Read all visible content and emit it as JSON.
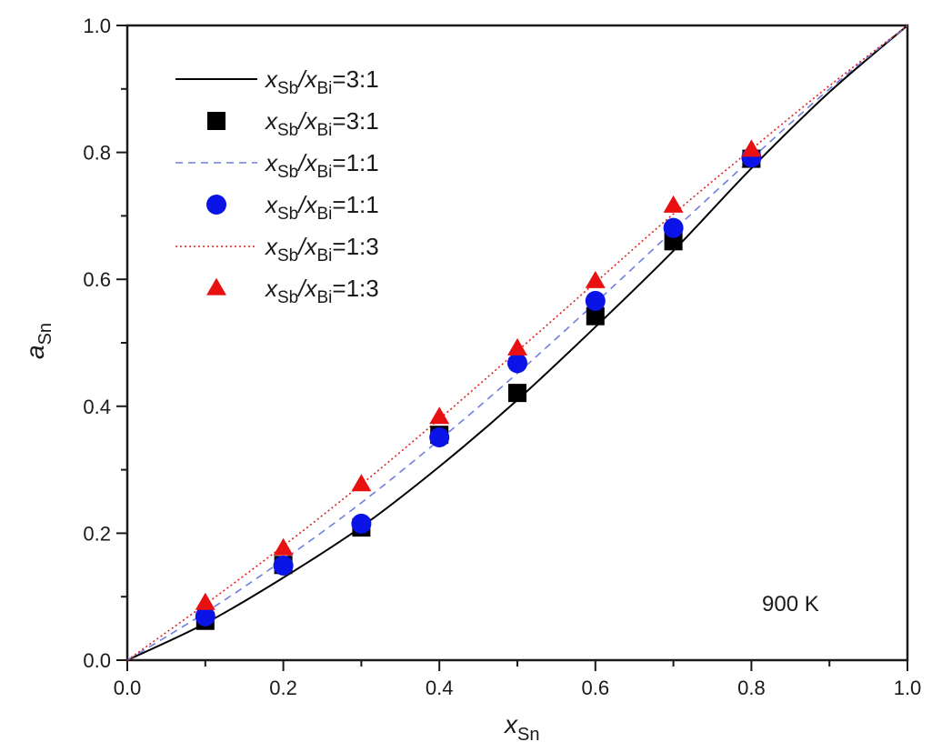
{
  "chart_data": {
    "type": "scatter",
    "title": "",
    "xlabel": "x_Sn",
    "ylabel": "a_Sn",
    "xlim": [
      0.0,
      1.0
    ],
    "ylim": [
      0.0,
      1.0
    ],
    "x_ticks": [
      "0.0",
      "0.2",
      "0.4",
      "0.6",
      "0.8",
      "1.0"
    ],
    "y_ticks": [
      "0.0",
      "0.2",
      "0.4",
      "0.6",
      "0.8",
      "1.0"
    ],
    "grid": false,
    "legend_position": "upper-left",
    "annotation": "900 K",
    "series": [
      {
        "name": "xSb/xBi=3:1",
        "kind": "line",
        "style": "solid",
        "color": "#000000",
        "x": [
          0.0,
          0.1,
          0.2,
          0.3,
          0.4,
          0.5,
          0.6,
          0.7,
          0.8,
          0.9,
          1.0
        ],
        "y": [
          0.0,
          0.058,
          0.13,
          0.21,
          0.305,
          0.41,
          0.525,
          0.645,
          0.775,
          0.895,
          1.0
        ]
      },
      {
        "name": "xSb/xBi=3:1",
        "kind": "marker",
        "marker": "square",
        "color": "#000000",
        "x": [
          0.1,
          0.2,
          0.3,
          0.4,
          0.5,
          0.6,
          0.7,
          0.8
        ],
        "y": [
          0.062,
          0.15,
          0.209,
          0.355,
          0.421,
          0.542,
          0.66,
          0.79
        ]
      },
      {
        "name": "xSb/xBi=1:1",
        "kind": "line",
        "style": "dashed",
        "color": "#6f7fe0",
        "x": [
          0.0,
          0.1,
          0.2,
          0.3,
          0.4,
          0.5,
          0.6,
          0.7,
          0.8,
          0.9,
          1.0
        ],
        "y": [
          0.0,
          0.075,
          0.158,
          0.248,
          0.347,
          0.452,
          0.563,
          0.677,
          0.79,
          0.9,
          1.0
        ]
      },
      {
        "name": "xSb/xBi=1:1",
        "kind": "marker",
        "marker": "circle",
        "color": "#0a14e6",
        "x": [
          0.1,
          0.2,
          0.3,
          0.4,
          0.5,
          0.6,
          0.7,
          0.8
        ],
        "y": [
          0.069,
          0.149,
          0.215,
          0.351,
          0.468,
          0.566,
          0.681,
          0.792
        ]
      },
      {
        "name": "xSb/xBi=1:3",
        "kind": "line",
        "style": "dotted",
        "color": "#e02020",
        "x": [
          0.0,
          0.1,
          0.2,
          0.3,
          0.4,
          0.5,
          0.6,
          0.7,
          0.8,
          0.9,
          1.0
        ],
        "y": [
          0.0,
          0.088,
          0.18,
          0.277,
          0.38,
          0.487,
          0.595,
          0.703,
          0.805,
          0.905,
          1.0
        ]
      },
      {
        "name": "xSb/xBi=1:3",
        "kind": "marker",
        "marker": "triangle",
        "color": "#e81010",
        "x": [
          0.1,
          0.2,
          0.3,
          0.4,
          0.5,
          0.6,
          0.7,
          0.8
        ],
        "y": [
          0.09,
          0.176,
          0.277,
          0.383,
          0.491,
          0.597,
          0.716,
          0.804
        ]
      }
    ]
  },
  "legend": {
    "items": [
      {
        "symbol": "solid-line",
        "label_prefix": "x",
        "sub1": "Sb",
        "mid": "/x",
        "sub2": "Bi",
        "ratio": "=3:1"
      },
      {
        "symbol": "square",
        "label_prefix": "x",
        "sub1": "Sb",
        "mid": "/x",
        "sub2": "Bi",
        "ratio": "=3:1"
      },
      {
        "symbol": "dashed-line",
        "label_prefix": "x",
        "sub1": "Sb",
        "mid": "/x",
        "sub2": "Bi",
        "ratio": "=1:1"
      },
      {
        "symbol": "circle",
        "label_prefix": "x",
        "sub1": "Sb",
        "mid": "/x",
        "sub2": "Bi",
        "ratio": "=1:1"
      },
      {
        "symbol": "dotted-line",
        "label_prefix": "x",
        "sub1": "Sb",
        "mid": "/x",
        "sub2": "Bi",
        "ratio": "=1:3"
      },
      {
        "symbol": "triangle",
        "label_prefix": "x",
        "sub1": "Sb",
        "mid": "/x",
        "sub2": "Bi",
        "ratio": "=1:3"
      }
    ]
  },
  "axes": {
    "x_title_main": "x",
    "x_title_sub": "Sn",
    "y_title_main": "a",
    "y_title_sub": "Sn"
  },
  "annotation": {
    "temperature": "900 K"
  }
}
